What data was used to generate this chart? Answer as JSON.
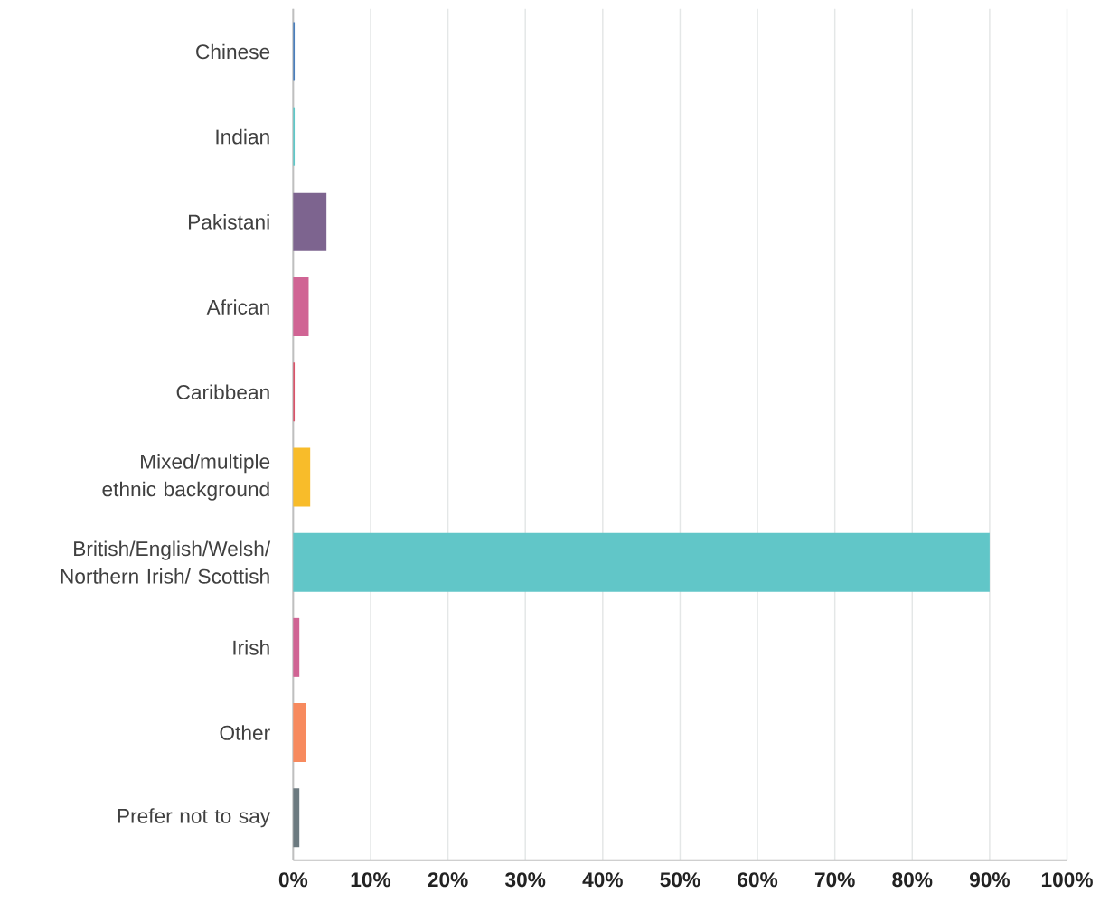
{
  "chart_data": {
    "type": "bar",
    "orientation": "horizontal",
    "categories": [
      "Chinese",
      "Indian",
      "Pakistani",
      "African",
      "Caribbean",
      "Mixed/multiple ethnic background",
      "British/English/Welsh/ Northern Irish/ Scottish",
      "Irish",
      "Other",
      "Prefer not to say"
    ],
    "values": [
      0.2,
      0.2,
      4.3,
      2.0,
      0.2,
      2.2,
      90,
      0.8,
      1.7,
      0.8
    ],
    "colors": [
      "#4a7ebb",
      "#5fc8c8",
      "#7d648f",
      "#d06494",
      "#d9546a",
      "#f8bc2a",
      "#61c6c8",
      "#d06494",
      "#f78a5e",
      "#6c7a80"
    ],
    "xlim": [
      0,
      100
    ],
    "xticks": [
      {
        "value": 0,
        "label": "0%"
      },
      {
        "value": 10,
        "label": "10%"
      },
      {
        "value": 20,
        "label": "20%"
      },
      {
        "value": 30,
        "label": "30%"
      },
      {
        "value": 40,
        "label": "40%"
      },
      {
        "value": 50,
        "label": "50%"
      },
      {
        "value": 60,
        "label": "60%"
      },
      {
        "value": 70,
        "label": "70%"
      },
      {
        "value": 80,
        "label": "80%"
      },
      {
        "value": 90,
        "label": "90%"
      },
      {
        "value": 100,
        "label": "100%"
      }
    ],
    "grid": "x"
  }
}
